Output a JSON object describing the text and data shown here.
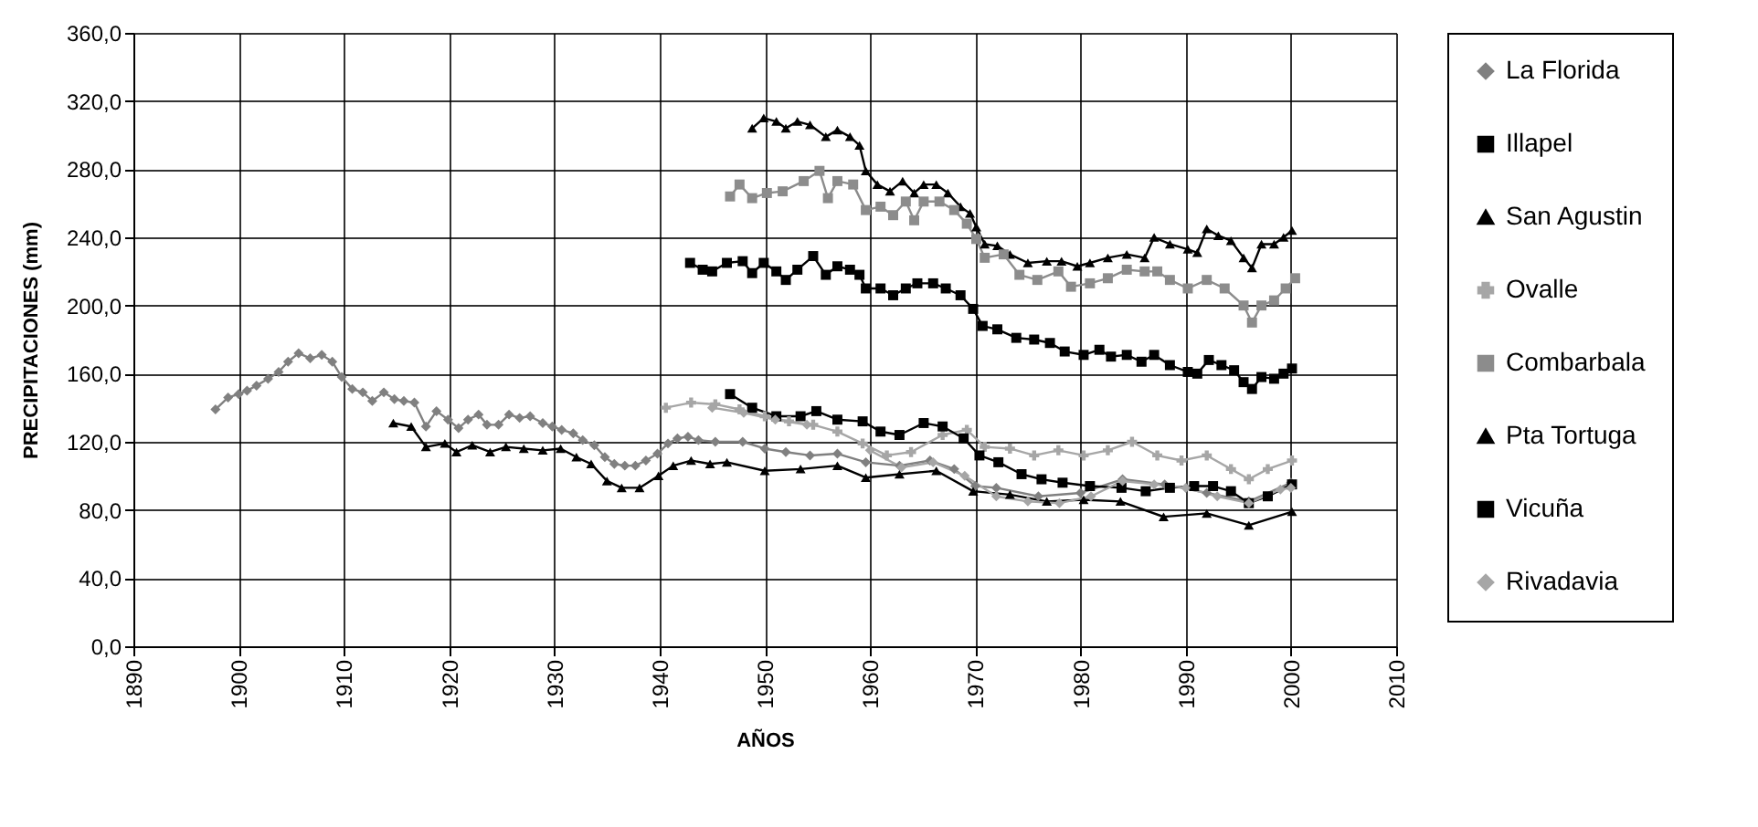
{
  "chart_data": {
    "type": "line",
    "xlabel": "AÑOS",
    "ylabel": "PRECIPITACIONES (mm)",
    "xlim": [
      1890,
      2010
    ],
    "xticks": [
      1890,
      1900,
      1910,
      1920,
      1930,
      1940,
      1950,
      1960,
      1970,
      1980,
      1990,
      2000,
      2010
    ],
    "ylim": [
      0,
      360
    ],
    "yticks": [
      {
        "value": 0,
        "label": "0,0"
      },
      {
        "value": 40,
        "label": "40,0"
      },
      {
        "value": 80,
        "label": "80,0"
      },
      {
        "value": 120,
        "label": "120,0"
      },
      {
        "value": 160,
        "label": "160,0"
      },
      {
        "value": 200,
        "label": "200,0"
      },
      {
        "value": 240,
        "label": "240,0"
      },
      {
        "value": 280,
        "label": "280,0"
      },
      {
        "value": 320,
        "label": "320,0"
      },
      {
        "value": 360,
        "label": "360,0"
      }
    ],
    "grid": true,
    "legend": "right",
    "line_style": "solid",
    "series": [
      {
        "name": "La Florida",
        "color": "#808080",
        "marker": "diamond",
        "x": [
          1897.8,
          1899,
          1900,
          1900.8,
          1901.7,
          1902.8,
          1903.8,
          1904.7,
          1905.7,
          1906.8,
          1907.9,
          1908.9,
          1909.8,
          1910.8,
          1911.8,
          1912.7,
          1913.8,
          1914.8,
          1915.7,
          1916.7,
          1917.8,
          1918.8,
          1919.9,
          1920.9,
          1921.8,
          1922.8,
          1923.6,
          1924.7,
          1925.7,
          1926.7,
          1927.7,
          1928.9,
          1929.8,
          1930.7,
          1931.8,
          1932.7,
          1933.8,
          1934.8,
          1935.7,
          1936.7,
          1937.7,
          1938.7,
          1939.8,
          1940.8,
          1941.7,
          1942.7,
          1943.7,
          1945.3,
          1947.9,
          1950,
          1952,
          1954.3,
          1956.9,
          1959.6,
          1962.8,
          1965.7,
          1968,
          1970,
          1972,
          1976,
          1980,
          1984,
          1988,
          1992,
          1996,
          2000
        ],
        "values": [
          139,
          146,
          148,
          150,
          153,
          157,
          161,
          167,
          172,
          169,
          171,
          167,
          158,
          151,
          149,
          144,
          149,
          145,
          144,
          143,
          129,
          138,
          133,
          128,
          133,
          136,
          130,
          130,
          136,
          134,
          135,
          131,
          129,
          127,
          125,
          121,
          118,
          111,
          107,
          106,
          106,
          109,
          113,
          119,
          122,
          123,
          121,
          120,
          120,
          116,
          114,
          112,
          113,
          108,
          106,
          109,
          104,
          94,
          93,
          88,
          90,
          98,
          95,
          90,
          85,
          96
        ]
      },
      {
        "name": "Illapel",
        "color": "#000000",
        "marker": "square",
        "x": [
          1942.9,
          1944.1,
          1945,
          1946.4,
          1947.9,
          1948.8,
          1949.9,
          1951.1,
          1952,
          1953.1,
          1954.6,
          1955.8,
          1956.9,
          1958.1,
          1959,
          1959.6,
          1961,
          1962.2,
          1963.4,
          1964.5,
          1966,
          1967.2,
          1968.6,
          1969.8,
          1970.7,
          1972.1,
          1973.9,
          1975.6,
          1977.1,
          1978.5,
          1980.3,
          1981.8,
          1982.9,
          1984.4,
          1985.8,
          1987,
          1988.5,
          1990.2,
          1991.1,
          1992.2,
          1993.4,
          1994.6,
          1995.5,
          1996.3,
          1997.2,
          1998.4,
          1999.3,
          2000.1
        ],
        "values": [
          225,
          221,
          220,
          225,
          226,
          219,
          225,
          220,
          215,
          221,
          229,
          218,
          223,
          221,
          218,
          210,
          210,
          206,
          210,
          213,
          213,
          210,
          206,
          198,
          188,
          186,
          181,
          180,
          178,
          173,
          171,
          174,
          170,
          171,
          167,
          171,
          165,
          161,
          160,
          168,
          165,
          162,
          155,
          151,
          158,
          157,
          160,
          163
        ]
      },
      {
        "name": "San Agustin",
        "color": "#000000",
        "marker": "triangle",
        "x": [
          1948.8,
          1949.9,
          1951.1,
          1952,
          1953.1,
          1954.3,
          1955.8,
          1956.9,
          1958.1,
          1959,
          1959.6,
          1960.7,
          1961.9,
          1963.1,
          1964.2,
          1965.1,
          1966.3,
          1967.4,
          1968.6,
          1969.5,
          1970.1,
          1970.9,
          1972.1,
          1973.3,
          1975,
          1976.8,
          1978.2,
          1979.7,
          1980.9,
          1982.6,
          1984.4,
          1986.1,
          1987,
          1988.5,
          1990.2,
          1991.1,
          1992,
          1993.1,
          1994.3,
          1995.5,
          1996.3,
          1997.2,
          1998.4,
          1999.3,
          2000.1
        ],
        "values": [
          304,
          310,
          308,
          304,
          308,
          306,
          299,
          303,
          299,
          294,
          279,
          271,
          267,
          273,
          266,
          271,
          271,
          266,
          258,
          254,
          246,
          236,
          235,
          230,
          225,
          226,
          226,
          223,
          225,
          228,
          230,
          228,
          240,
          236,
          233,
          231,
          245,
          241,
          238,
          228,
          222,
          236,
          236,
          240,
          244
        ]
      },
      {
        "name": "Ovalle",
        "color": "#a6a6a6",
        "marker": "cross",
        "x": [
          1940.6,
          1943,
          1945.3,
          1947.6,
          1950,
          1952.3,
          1954.6,
          1956.9,
          1959.3,
          1961.6,
          1963.9,
          1966.9,
          1969.2,
          1970.9,
          1973.3,
          1975.6,
          1977.9,
          1980.3,
          1982.6,
          1984.9,
          1987.3,
          1989.6,
          1992,
          1994.3,
          1996,
          1997.8,
          2000.1
        ],
        "values": [
          140,
          143,
          142,
          139,
          135,
          132,
          130,
          126,
          119,
          112,
          114,
          124,
          127,
          117,
          116,
          112,
          115,
          112,
          115,
          120,
          112,
          109,
          112,
          104,
          98,
          104,
          109
        ]
      },
      {
        "name": "Combarbala",
        "color": "#8c8c8c",
        "marker": "square",
        "x": [
          1946.7,
          1947.6,
          1948.8,
          1950.2,
          1951.7,
          1953.7,
          1955.2,
          1956,
          1956.9,
          1958.4,
          1959.6,
          1961,
          1962.2,
          1963.4,
          1964.2,
          1965.1,
          1966.6,
          1968,
          1969.2,
          1970.1,
          1970.9,
          1972.7,
          1974.2,
          1975.9,
          1977.9,
          1979.1,
          1980.9,
          1982.6,
          1984.4,
          1986.1,
          1987.3,
          1988.5,
          1990.2,
          1992,
          1993.7,
          1995.5,
          1996.3,
          1997.2,
          1998.4,
          1999.5,
          2000.4
        ],
        "values": [
          264,
          271,
          263,
          266,
          267,
          273,
          279,
          263,
          273,
          271,
          256,
          258,
          253,
          261,
          250,
          261,
          261,
          256,
          248,
          239,
          228,
          230,
          218,
          215,
          220,
          211,
          213,
          216,
          221,
          220,
          220,
          215,
          210,
          215,
          210,
          200,
          190,
          200,
          203,
          210,
          216
        ]
      },
      {
        "name": "Pta Tortuga",
        "color": "#000000",
        "marker": "triangle",
        "x": [
          1914.7,
          1916.4,
          1917.8,
          1919.6,
          1920.7,
          1922.2,
          1923.9,
          1925.4,
          1927.1,
          1928.9,
          1930.6,
          1932.1,
          1933.5,
          1935,
          1936.4,
          1938.1,
          1939.9,
          1941.3,
          1943,
          1944.8,
          1946.4,
          1950,
          1953.4,
          1956.9,
          1959.6,
          1962.8,
          1966.3,
          1969.8,
          1973.3,
          1976.8,
          1980.3,
          1983.8,
          1987.9,
          1992,
          1996,
          2000.1
        ],
        "values": [
          131,
          129,
          117,
          119,
          114,
          118,
          114,
          117,
          116,
          115,
          116,
          111,
          107,
          97,
          93,
          93,
          100,
          106,
          109,
          107,
          108,
          103,
          104,
          106,
          99,
          101,
          103,
          91,
          89,
          85,
          86,
          85,
          76,
          78,
          71,
          79
        ]
      },
      {
        "name": "Vicuña",
        "color": "#000000",
        "marker": "square",
        "x": [
          1946.7,
          1948.8,
          1951.1,
          1953.4,
          1954.9,
          1956.9,
          1959.3,
          1961,
          1962.8,
          1965.1,
          1966.9,
          1968.9,
          1970.4,
          1972.2,
          1974.4,
          1976.3,
          1978.3,
          1980.9,
          1983.9,
          1986.2,
          1988.5,
          1990.8,
          1992.6,
          1994.3,
          1996,
          1997.8,
          2000.1
        ],
        "values": [
          148,
          140,
          135,
          135,
          138,
          133,
          132,
          126,
          124,
          131,
          129,
          122,
          112,
          108,
          101,
          98,
          96,
          94,
          93,
          91,
          93,
          94,
          94,
          91,
          84,
          88,
          95
        ]
      },
      {
        "name": "Rivadavia",
        "color": "#a6a6a6",
        "marker": "diamond",
        "x": [
          1945,
          1948,
          1951,
          1954,
          1957,
          1960,
          1963,
          1966,
          1969,
          1972,
          1975,
          1978,
          1981,
          1984,
          1987,
          1990,
          1993,
          1996,
          1999,
          2000
        ],
        "values": [
          140,
          137,
          133,
          130,
          null,
          115,
          105,
          108,
          100,
          88,
          85,
          84,
          88,
          97,
          95,
          93,
          88,
          84,
          92,
          93
        ]
      }
    ]
  }
}
